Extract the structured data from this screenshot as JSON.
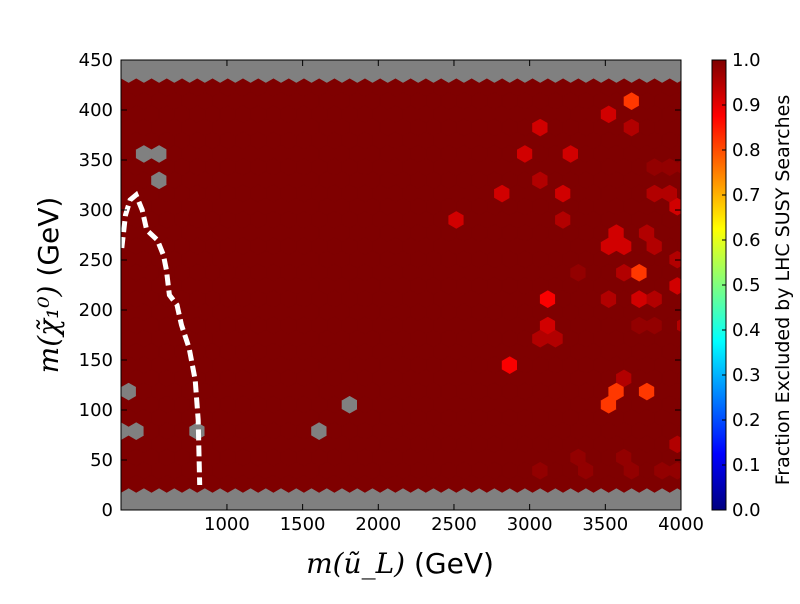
{
  "chart_data": {
    "type": "heatmap",
    "subtype": "hexbin",
    "xlabel": {
      "math": "m(ũ_L)",
      "text": " (GeV)"
    },
    "ylabel": {
      "math": "m(χ̃₁⁰)",
      "text": " (GeV)"
    },
    "xlim": [
      300,
      4000
    ],
    "ylim": [
      0,
      450
    ],
    "x_ticks": [
      "1000",
      "1500",
      "2000",
      "2500",
      "3000",
      "3500",
      "4000"
    ],
    "y_ticks": [
      "0",
      "50",
      "100",
      "150",
      "200",
      "250",
      "300",
      "350",
      "400",
      "450"
    ],
    "colorbar": {
      "label": "Fraction Excluded by LHC SUSY Searches",
      "range": [
        0.0,
        1.0
      ],
      "ticks": [
        "0.0",
        "0.1",
        "0.2",
        "0.3",
        "0.4",
        "0.5",
        "0.6",
        "0.7",
        "0.8",
        "0.9",
        "1.0"
      ],
      "colormap": "jet",
      "colormap_stops": [
        "#00007f",
        "#0000ff",
        "#007fff",
        "#00ffff",
        "#7fff7f",
        "#ffff00",
        "#ff7f00",
        "#ff0000",
        "#7f0000"
      ]
    },
    "background_color": "#808080",
    "default_cell_value": 1.0,
    "grey_cells_no_data": [
      [
        440,
        350
      ],
      [
        550,
        350
      ],
      [
        600,
        330
      ],
      [
        600,
        360
      ],
      [
        1780,
        105
      ],
      [
        300,
        120
      ],
      [
        330,
        85
      ],
      [
        440,
        80
      ],
      [
        770,
        80
      ],
      [
        1650,
        80
      ]
    ],
    "highlighted_cells": [
      [
        3700,
        410,
        0.82
      ],
      [
        3050,
        385,
        0.92
      ],
      [
        3500,
        398,
        0.92
      ],
      [
        3700,
        385,
        0.95
      ],
      [
        2950,
        358,
        0.92
      ],
      [
        3300,
        358,
        0.92
      ],
      [
        3050,
        330,
        0.95
      ],
      [
        3800,
        345,
        0.98
      ],
      [
        3900,
        345,
        0.98
      ],
      [
        4000,
        345,
        0.98
      ],
      [
        2770,
        318,
        0.92
      ],
      [
        3250,
        318,
        0.92
      ],
      [
        3850,
        318,
        0.95
      ],
      [
        3950,
        318,
        0.95
      ],
      [
        3970,
        305,
        0.92
      ],
      [
        2520,
        292,
        0.92
      ],
      [
        3250,
        292,
        0.95
      ],
      [
        3550,
        278,
        0.92
      ],
      [
        3800,
        278,
        0.95
      ],
      [
        3500,
        265,
        0.92
      ],
      [
        3600,
        265,
        0.92
      ],
      [
        3850,
        265,
        0.95
      ],
      [
        3950,
        255,
        0.95
      ],
      [
        3350,
        240,
        0.98
      ],
      [
        3650,
        240,
        0.95
      ],
      [
        3720,
        240,
        0.82
      ],
      [
        3950,
        228,
        0.92
      ],
      [
        3100,
        212,
        0.88
      ],
      [
        3500,
        212,
        0.95
      ],
      [
        3750,
        212,
        0.92
      ],
      [
        3850,
        212,
        0.95
      ],
      [
        3150,
        185,
        0.92
      ],
      [
        3750,
        185,
        0.98
      ],
      [
        3850,
        185,
        0.98
      ],
      [
        4000,
        185,
        0.95
      ],
      [
        3060,
        172,
        0.95
      ],
      [
        3200,
        172,
        0.95
      ],
      [
        2830,
        145,
        0.88
      ],
      [
        3650,
        132,
        0.95
      ],
      [
        3550,
        120,
        0.82
      ],
      [
        3500,
        107,
        0.82
      ],
      [
        3800,
        120,
        0.82
      ],
      [
        3950,
        68,
        0.95
      ],
      [
        3350,
        55,
        0.98
      ],
      [
        3650,
        55,
        0.98
      ],
      [
        3080,
        40,
        0.98
      ],
      [
        3400,
        40,
        0.98
      ],
      [
        3700,
        40,
        0.98
      ],
      [
        3830,
        40,
        0.98
      ],
      [
        3950,
        40,
        0.98
      ]
    ],
    "boundary_line": {
      "style": "dashed",
      "color": "#ffffff",
      "points": [
        [
          305,
          262
        ],
        [
          330,
          295
        ],
        [
          360,
          310
        ],
        [
          400,
          315
        ],
        [
          440,
          300
        ],
        [
          470,
          280
        ],
        [
          540,
          270
        ],
        [
          580,
          255
        ],
        [
          600,
          240
        ],
        [
          620,
          215
        ],
        [
          670,
          205
        ],
        [
          700,
          185
        ],
        [
          750,
          162
        ],
        [
          790,
          130
        ],
        [
          810,
          90
        ],
        [
          820,
          25
        ]
      ]
    }
  }
}
